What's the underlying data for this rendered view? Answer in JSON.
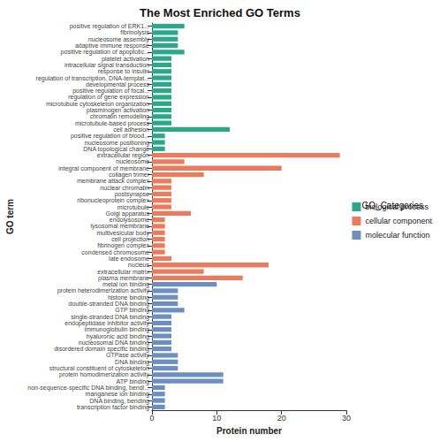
{
  "chart_data": {
    "type": "bar",
    "orientation": "horizontal",
    "title": "The Most Enriched GO Terms",
    "x_label": "Protein number",
    "y_label": "GO term",
    "legend_title": "GO_Categories",
    "legend": "right",
    "grid": false,
    "xlim": [
      0,
      30
    ],
    "xticks": [
      0,
      10,
      20,
      30
    ],
    "categories": [
      "positive regulation of ERK1...",
      "fibrinolysis",
      "nucleosome assembly",
      "adaptive immune response",
      "positive regulation of apoptotic...",
      "platelet activation",
      "intracellular signal transduction",
      "response to insulin",
      "regulation of transcription, DNA-templat...",
      "developmental process",
      "positive regulation of focal...",
      "regulation of gene expression",
      "microtubule cytoskeleton organization",
      "plasminogen activation",
      "chromatin remodeling",
      "microtubule-based process",
      "cell adhesion",
      "positive regulation of blood...",
      "nucleosome positioning",
      "DNA topological change",
      "extracellular region",
      "nucleosome",
      "integral component of membrane",
      "collagen trimer",
      "membrane attack complex",
      "nuclear chromatin",
      "postsynapse",
      "ribonucleoprotein complex",
      "microtubule",
      "Golgi apparatus",
      "endolysosome",
      "lysosomal membrane",
      "multivesicular body",
      "cell projection",
      "fibrinogen complex",
      "condensed chromosome",
      "late endosome",
      "nucleus",
      "extracellular matrix",
      "plasma membrane",
      "metal ion binding",
      "protein heterodimerization activity",
      "histone binding",
      "double-stranded DNA binding",
      "GTP binding",
      "single-stranded DNA binding",
      "endopeptidase inhibitor activity",
      "immunoglobulin binding",
      "hyaluronic acid binding",
      "nucleosomal DNA binding",
      "disordered domain specific binding",
      "GTPase activity",
      "DNA binding",
      "structural constituent of cytoskeleton",
      "protein homodimerization activity",
      "ATP binding",
      "non-sequence-specific DNA binding, bendi...",
      "manganese ion binding",
      "DNA binding, bending",
      "transcription factor binding"
    ],
    "series": [
      {
        "name": "biological process",
        "color": "#2AA889",
        "values": [
          5,
          4,
          4,
          4,
          5,
          3,
          3,
          3,
          3,
          3,
          3,
          3,
          3,
          3,
          3,
          3,
          12,
          2,
          2,
          2,
          null,
          null,
          null,
          null,
          null,
          null,
          null,
          null,
          null,
          null,
          null,
          null,
          null,
          null,
          null,
          null,
          null,
          null,
          null,
          null,
          null,
          null,
          null,
          null,
          null,
          null,
          null,
          null,
          null,
          null,
          null,
          null,
          null,
          null,
          null,
          null,
          null,
          null,
          null,
          null
        ]
      },
      {
        "name": "cellular component",
        "color": "#EC7A5C",
        "values": [
          null,
          null,
          null,
          null,
          null,
          null,
          null,
          null,
          null,
          null,
          null,
          null,
          null,
          null,
          null,
          null,
          null,
          null,
          null,
          null,
          29,
          5,
          20,
          8,
          3,
          3,
          3,
          3,
          3,
          6,
          2,
          2,
          2,
          2,
          2,
          2,
          3,
          18,
          8,
          14,
          null,
          null,
          null,
          null,
          null,
          null,
          null,
          null,
          null,
          null,
          null,
          null,
          null,
          null,
          null,
          null,
          null,
          null,
          null,
          null
        ]
      },
      {
        "name": "molecular function",
        "color": "#6D8EC0",
        "values": [
          null,
          null,
          null,
          null,
          null,
          null,
          null,
          null,
          null,
          null,
          null,
          null,
          null,
          null,
          null,
          null,
          null,
          null,
          null,
          null,
          null,
          null,
          null,
          null,
          null,
          null,
          null,
          null,
          null,
          null,
          null,
          null,
          null,
          null,
          null,
          null,
          null,
          null,
          null,
          null,
          10,
          4,
          4,
          4,
          5,
          3,
          3,
          3,
          3,
          3,
          3,
          4,
          4,
          4,
          11,
          11,
          2,
          2,
          2,
          2
        ]
      }
    ]
  }
}
